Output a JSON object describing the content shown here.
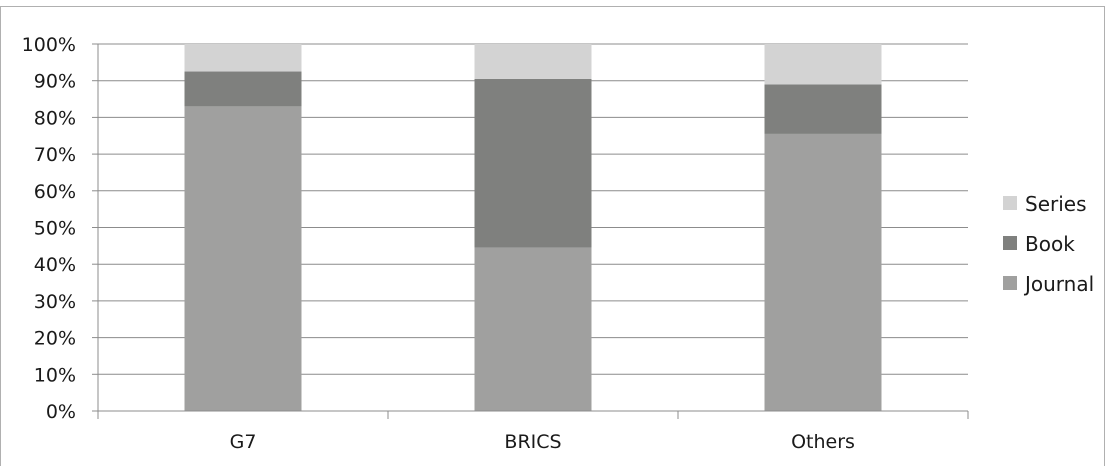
{
  "chart_data": {
    "type": "bar",
    "stacked": true,
    "categories": [
      "G7",
      "BRICS",
      "Others"
    ],
    "series": [
      {
        "name": "Journal",
        "values": [
          83,
          44.5,
          75.5
        ],
        "color": "#a0a09f"
      },
      {
        "name": "Book",
        "values": [
          9.5,
          46,
          13.5
        ],
        "color": "#7f807e"
      },
      {
        "name": "Series",
        "values": [
          7.5,
          9.5,
          11
        ],
        "color": "#d3d3d3"
      }
    ],
    "yticks": [
      "0%",
      "10%",
      "20%",
      "30%",
      "40%",
      "50%",
      "60%",
      "70%",
      "80%",
      "90%",
      "100%"
    ],
    "ylim": [
      0,
      100
    ],
    "grid": true,
    "legend_position": "right",
    "legend_order": [
      "Series",
      "Book",
      "Journal"
    ],
    "colors": {
      "axis": "#8c8c8c",
      "grid": "#8c8c8c",
      "frame": "#b0b0b0"
    }
  }
}
